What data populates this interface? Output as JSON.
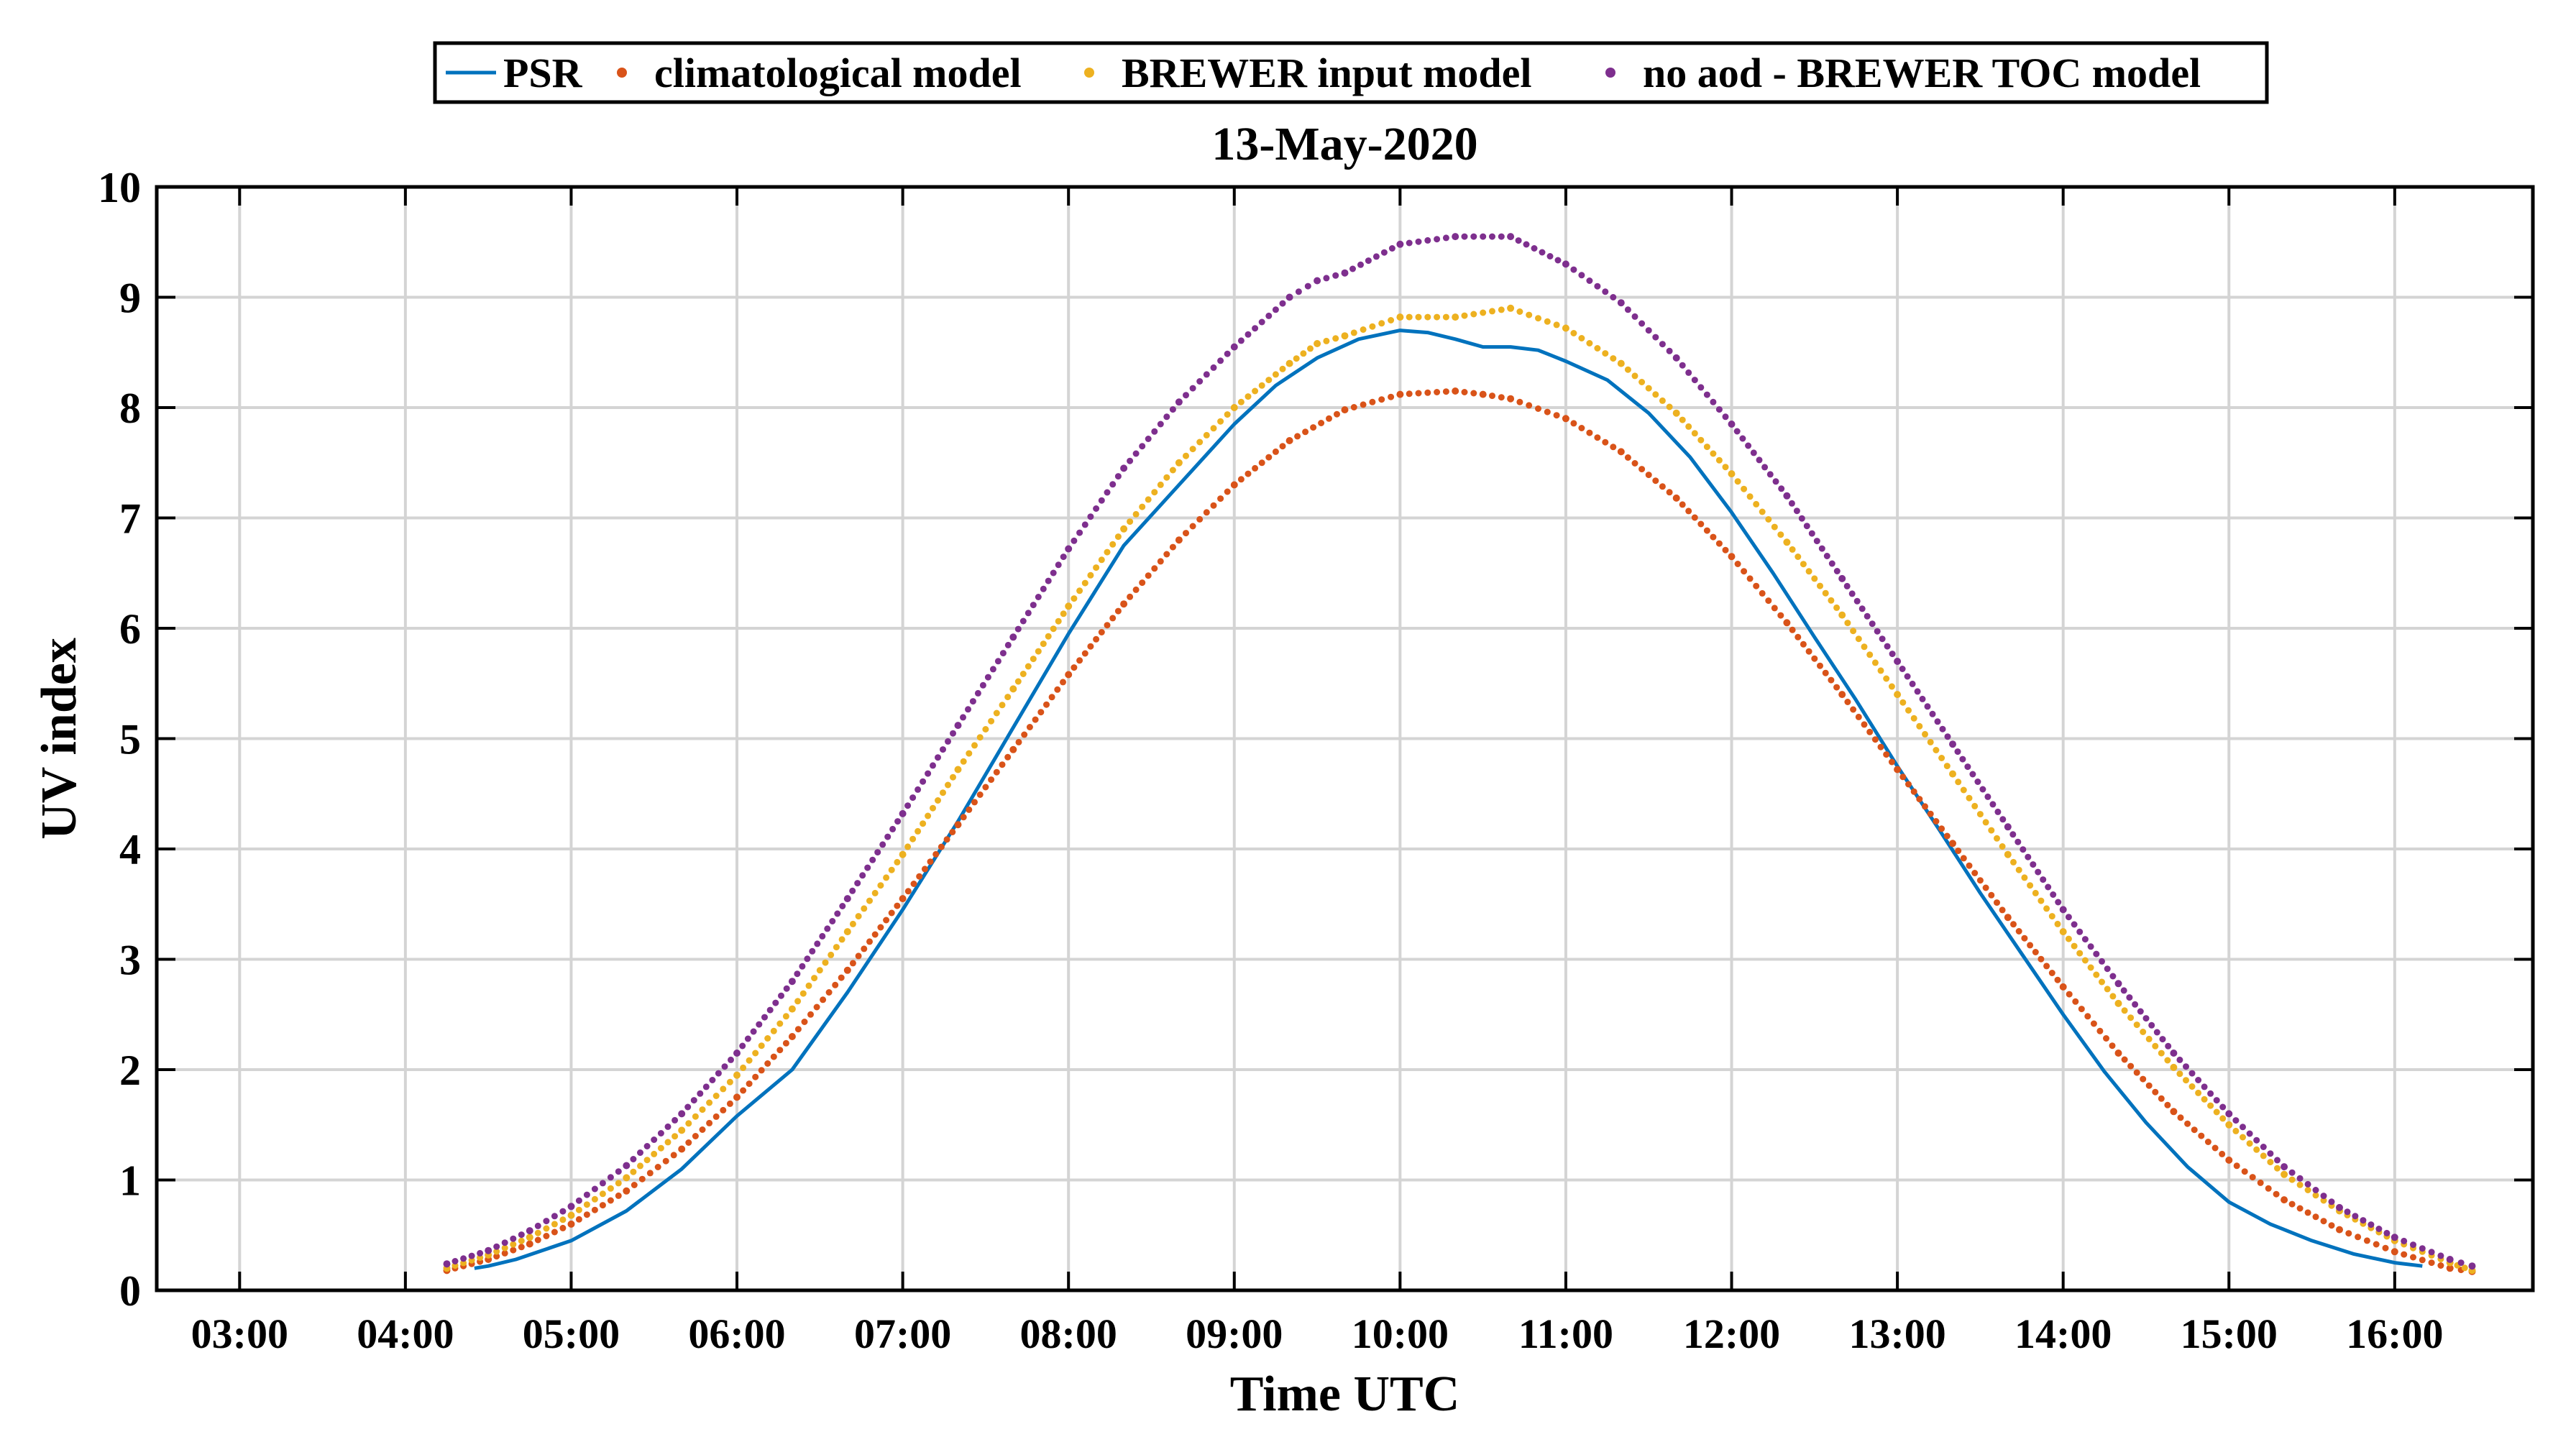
{
  "chart_data": {
    "type": "line",
    "title": "13-May-2020",
    "xlabel": "Time UTC",
    "ylabel": "UV index",
    "xlim": [
      "02:30",
      "16:50"
    ],
    "ylim": [
      0,
      10
    ],
    "x_ticks": [
      "03:00",
      "04:00",
      "05:00",
      "06:00",
      "07:00",
      "08:00",
      "09:00",
      "10:00",
      "11:00",
      "12:00",
      "13:00",
      "14:00",
      "15:00",
      "16:00"
    ],
    "y_ticks": [
      "0",
      "1",
      "2",
      "3",
      "4",
      "5",
      "6",
      "7",
      "8",
      "9",
      "10"
    ],
    "grid": true,
    "legend": {
      "placement": "top",
      "orientation": "horizontal"
    },
    "series": [
      {
        "name": "PSR",
        "style": "line",
        "color": "#0072BD",
        "x": [
          "04:25",
          "04:30",
          "04:40",
          "05:00",
          "05:20",
          "05:40",
          "06:00",
          "06:20",
          "06:40",
          "07:00",
          "07:20",
          "07:40",
          "08:00",
          "08:20",
          "08:40",
          "09:00",
          "09:15",
          "09:30",
          "09:45",
          "10:00",
          "10:10",
          "10:20",
          "10:30",
          "10:40",
          "10:50",
          "11:00",
          "11:15",
          "11:30",
          "11:45",
          "12:00",
          "12:15",
          "12:30",
          "12:45",
          "13:00",
          "13:15",
          "13:30",
          "13:45",
          "14:00",
          "14:15",
          "14:30",
          "14:45",
          "15:00",
          "15:15",
          "15:30",
          "15:45",
          "16:00",
          "16:10"
        ],
        "y": [
          0.2,
          0.22,
          0.28,
          0.45,
          0.72,
          1.1,
          1.58,
          2.0,
          2.7,
          3.45,
          4.25,
          5.1,
          5.95,
          6.75,
          7.3,
          7.85,
          8.2,
          8.45,
          8.62,
          8.7,
          8.68,
          8.62,
          8.55,
          8.55,
          8.52,
          8.42,
          8.25,
          7.95,
          7.55,
          7.05,
          6.5,
          5.92,
          5.35,
          4.75,
          4.18,
          3.6,
          3.05,
          2.5,
          1.98,
          1.52,
          1.12,
          0.8,
          0.6,
          0.45,
          0.33,
          0.25,
          0.22
        ]
      },
      {
        "name": "climatological model",
        "style": "dots",
        "color": "#D95319",
        "x": [
          "04:15",
          "04:30",
          "04:45",
          "05:00",
          "05:20",
          "05:40",
          "06:00",
          "06:20",
          "06:40",
          "07:00",
          "07:20",
          "07:40",
          "08:00",
          "08:20",
          "08:40",
          "09:00",
          "09:20",
          "09:40",
          "10:00",
          "10:20",
          "10:30",
          "10:40",
          "11:00",
          "11:20",
          "11:40",
          "12:00",
          "12:20",
          "12:40",
          "13:00",
          "13:20",
          "13:40",
          "14:00",
          "14:20",
          "14:40",
          "15:00",
          "15:20",
          "15:40",
          "16:00",
          "16:20",
          "16:28"
        ],
        "y": [
          0.18,
          0.28,
          0.42,
          0.6,
          0.9,
          1.28,
          1.75,
          2.3,
          2.9,
          3.55,
          4.22,
          4.9,
          5.58,
          6.22,
          6.8,
          7.3,
          7.7,
          7.98,
          8.12,
          8.15,
          8.12,
          8.08,
          7.9,
          7.6,
          7.18,
          6.65,
          6.05,
          5.4,
          4.72,
          4.05,
          3.38,
          2.75,
          2.15,
          1.62,
          1.18,
          0.82,
          0.55,
          0.35,
          0.2,
          0.17
        ]
      },
      {
        "name": "BREWER input model",
        "style": "dots",
        "color": "#EDB120",
        "x": [
          "04:15",
          "04:30",
          "04:45",
          "05:00",
          "05:20",
          "05:40",
          "06:00",
          "06:20",
          "06:40",
          "07:00",
          "07:20",
          "07:40",
          "08:00",
          "08:20",
          "08:40",
          "09:00",
          "09:20",
          "09:30",
          "09:40",
          "10:00",
          "10:20",
          "10:40",
          "11:00",
          "11:20",
          "11:40",
          "12:00",
          "12:20",
          "12:40",
          "13:00",
          "13:20",
          "13:40",
          "14:00",
          "14:20",
          "14:40",
          "15:00",
          "15:20",
          "15:40",
          "16:00",
          "16:20",
          "16:28"
        ],
        "y": [
          0.2,
          0.32,
          0.48,
          0.68,
          1.02,
          1.45,
          1.95,
          2.55,
          3.25,
          3.95,
          4.72,
          5.45,
          6.2,
          6.9,
          7.5,
          8.0,
          8.4,
          8.58,
          8.65,
          8.82,
          8.82,
          8.9,
          8.72,
          8.4,
          7.95,
          7.4,
          6.78,
          6.12,
          5.4,
          4.68,
          3.95,
          3.25,
          2.6,
          2.02,
          1.5,
          1.05,
          0.72,
          0.45,
          0.25,
          0.18
        ]
      },
      {
        "name": "no aod - BREWER TOC model",
        "style": "dots",
        "color": "#7E2F8E",
        "x": [
          "04:15",
          "04:30",
          "04:45",
          "05:00",
          "05:20",
          "05:40",
          "06:00",
          "06:20",
          "06:40",
          "07:00",
          "07:20",
          "07:40",
          "08:00",
          "08:20",
          "08:40",
          "09:00",
          "09:20",
          "09:30",
          "09:40",
          "10:00",
          "10:20",
          "10:40",
          "11:00",
          "11:20",
          "11:40",
          "12:00",
          "12:20",
          "12:40",
          "13:00",
          "13:20",
          "13:40",
          "14:00",
          "14:20",
          "14:40",
          "15:00",
          "15:20",
          "15:40",
          "16:00",
          "16:20",
          "16:28"
        ],
        "y": [
          0.24,
          0.36,
          0.54,
          0.76,
          1.13,
          1.6,
          2.15,
          2.8,
          3.55,
          4.32,
          5.12,
          5.92,
          6.72,
          7.45,
          8.05,
          8.55,
          9.0,
          9.15,
          9.22,
          9.48,
          9.55,
          9.55,
          9.3,
          8.95,
          8.45,
          7.85,
          7.2,
          6.45,
          5.7,
          4.95,
          4.2,
          3.45,
          2.78,
          2.15,
          1.6,
          1.12,
          0.75,
          0.48,
          0.28,
          0.22
        ]
      }
    ]
  }
}
